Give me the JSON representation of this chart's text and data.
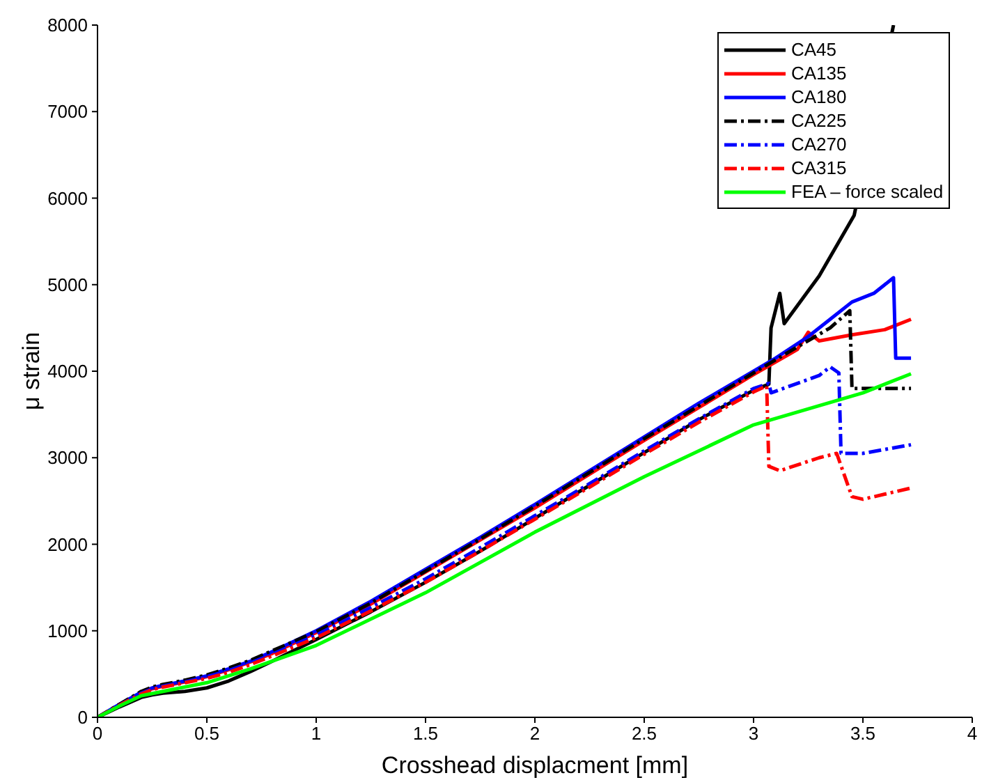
{
  "chart_data": {
    "type": "line",
    "xlabel": "Crosshead displacment [mm]",
    "ylabel": "μ strain",
    "xlim": [
      0,
      4
    ],
    "xticks": [
      0,
      0.5,
      1,
      1.5,
      2,
      2.5,
      3,
      3.5,
      4
    ],
    "ylim": [
      0,
      8000
    ],
    "yticks": [
      0,
      1000,
      2000,
      3000,
      4000,
      5000,
      6000,
      7000,
      8000
    ],
    "grid": false,
    "legend": "top right",
    "marker": "none",
    "series": [
      {
        "name": "CA45",
        "color": "#000000",
        "line_style": "solid",
        "x": [
          0,
          0.1,
          0.2,
          0.25,
          0.3,
          0.4,
          0.5,
          0.6,
          0.7,
          0.8,
          1,
          1.25,
          1.5,
          1.75,
          2,
          2.25,
          2.5,
          2.75,
          3,
          3.07,
          3.08,
          3.12,
          3.14,
          3.3,
          3.46,
          3.64
        ],
        "values": [
          0,
          120,
          230,
          260,
          280,
          300,
          340,
          420,
          530,
          650,
          900,
          1220,
          1560,
          1920,
          2300,
          2680,
          3060,
          3440,
          3780,
          3850,
          4500,
          4900,
          4550,
          5100,
          5800,
          8000
        ]
      },
      {
        "name": "CA135",
        "color": "#ff0000",
        "line_style": "solid",
        "x": [
          0,
          0.1,
          0.2,
          0.25,
          0.3,
          0.4,
          0.5,
          0.6,
          0.7,
          0.8,
          1,
          1.25,
          1.5,
          1.75,
          2,
          2.25,
          2.5,
          2.75,
          3,
          3.2,
          3.25,
          3.3,
          3.45,
          3.6,
          3.72
        ],
        "values": [
          0,
          140,
          280,
          330,
          360,
          410,
          470,
          550,
          640,
          740,
          980,
          1310,
          1680,
          2050,
          2420,
          2810,
          3200,
          3580,
          3960,
          4250,
          4450,
          4350,
          4420,
          4480,
          4600
        ]
      },
      {
        "name": "CA180",
        "color": "#0000ff",
        "line_style": "solid",
        "x": [
          0,
          0.1,
          0.2,
          0.25,
          0.3,
          0.4,
          0.5,
          0.6,
          0.7,
          0.8,
          1,
          1.25,
          1.5,
          1.75,
          2,
          2.25,
          2.5,
          2.75,
          3,
          3.1,
          3.25,
          3.35,
          3.45,
          3.55,
          3.64,
          3.65,
          3.72
        ],
        "values": [
          0,
          150,
          290,
          340,
          370,
          420,
          480,
          560,
          650,
          760,
          1000,
          1340,
          1710,
          2080,
          2460,
          2850,
          3240,
          3630,
          4000,
          4150,
          4400,
          4600,
          4800,
          4900,
          5080,
          4150,
          4150
        ]
      },
      {
        "name": "CA225",
        "color": "#000000",
        "line_style": "dashed",
        "x": [
          0,
          0.1,
          0.2,
          0.25,
          0.3,
          0.4,
          0.5,
          0.6,
          0.7,
          0.8,
          1,
          1.25,
          1.5,
          1.75,
          2,
          2.25,
          2.5,
          2.75,
          3,
          3.2,
          3.35,
          3.44,
          3.45,
          3.72
        ],
        "values": [
          0,
          150,
          300,
          350,
          380,
          430,
          490,
          570,
          660,
          770,
          990,
          1320,
          1690,
          2060,
          2440,
          2830,
          3220,
          3600,
          3980,
          4280,
          4500,
          4700,
          3800,
          3800
        ]
      },
      {
        "name": "CA270",
        "color": "#0000ff",
        "line_style": "dashed",
        "x": [
          0,
          0.1,
          0.2,
          0.25,
          0.3,
          0.4,
          0.5,
          0.6,
          0.7,
          0.8,
          1,
          1.25,
          1.5,
          1.75,
          2,
          2.25,
          2.5,
          2.75,
          3,
          3.07,
          3.08,
          3.3,
          3.35,
          3.39,
          3.4,
          3.5,
          3.72
        ],
        "values": [
          0,
          140,
          280,
          330,
          360,
          410,
          470,
          540,
          630,
          730,
          950,
          1270,
          1600,
          1960,
          2330,
          2700,
          3080,
          3450,
          3800,
          3860,
          3750,
          3950,
          4050,
          3980,
          3050,
          3050,
          3150
        ]
      },
      {
        "name": "CA315",
        "color": "#ff0000",
        "line_style": "dashed",
        "x": [
          0,
          0.1,
          0.2,
          0.25,
          0.3,
          0.4,
          0.5,
          0.6,
          0.7,
          0.8,
          1,
          1.25,
          1.5,
          1.75,
          2,
          2.25,
          2.5,
          2.75,
          3,
          3.06,
          3.07,
          3.12,
          3.3,
          3.38,
          3.45,
          3.5,
          3.72
        ],
        "values": [
          0,
          140,
          270,
          320,
          350,
          400,
          450,
          520,
          610,
          710,
          920,
          1230,
          1560,
          1920,
          2290,
          2660,
          3040,
          3410,
          3760,
          3830,
          2900,
          2850,
          3000,
          3050,
          2550,
          2520,
          2650
        ]
      },
      {
        "name": "FEA – force scaled",
        "color": "#00ff00",
        "line_style": "solid",
        "x": [
          0,
          0.1,
          0.2,
          0.3,
          0.5,
          0.7,
          1,
          1.5,
          2,
          2.5,
          3,
          3.5,
          3.72
        ],
        "values": [
          0,
          130,
          250,
          300,
          400,
          560,
          830,
          1440,
          2140,
          2780,
          3380,
          3750,
          3970
        ]
      }
    ]
  }
}
